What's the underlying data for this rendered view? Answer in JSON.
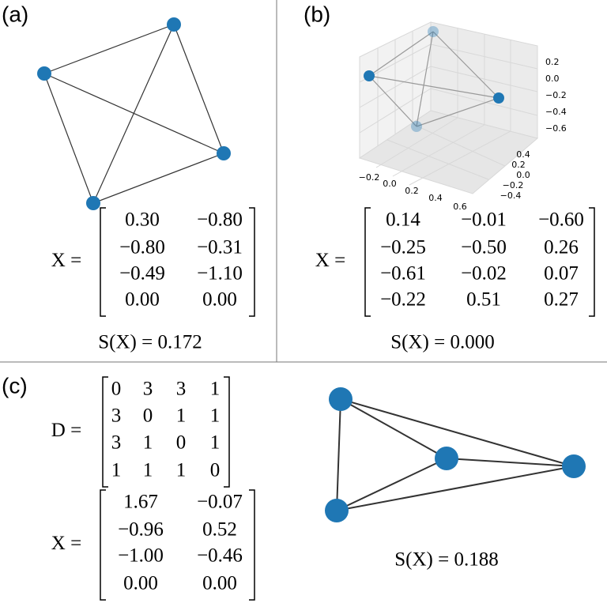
{
  "panels": [
    {
      "label": "(a)",
      "matrix": {
        "name": "X =",
        "rows": [
          [
            "0.30",
            "−0.80"
          ],
          [
            "−0.80",
            "−0.31"
          ],
          [
            "−0.49",
            "−1.10"
          ],
          [
            "0.00",
            "0.00"
          ]
        ]
      },
      "score": "S(X) = 0.172"
    },
    {
      "label": "(b)",
      "plot3d": {
        "x_ticks": [
          "−0.2",
          "0.0",
          "0.2",
          "0.4",
          "0.6"
        ],
        "y_ticks": [
          "0.4",
          "0.2",
          "0.0",
          "−0.2",
          "−0.4"
        ],
        "z_ticks": [
          "0.2",
          "0.0",
          "−0.2",
          "−0.4",
          "−0.6"
        ]
      },
      "matrix": {
        "name": "X =",
        "rows": [
          [
            "0.14",
            "−0.01",
            "−0.60"
          ],
          [
            "−0.25",
            "−0.50",
            "0.26"
          ],
          [
            "−0.61",
            "−0.02",
            "0.07"
          ],
          [
            "−0.22",
            "0.51",
            "0.27"
          ]
        ]
      },
      "score": "S(X) = 0.000"
    },
    {
      "label": "(c)",
      "distance_matrix": {
        "name": "D =",
        "rows": [
          [
            "0",
            "3",
            "3",
            "1"
          ],
          [
            "3",
            "0",
            "1",
            "1"
          ],
          [
            "3",
            "1",
            "0",
            "1"
          ],
          [
            "1",
            "1",
            "1",
            "0"
          ]
        ]
      },
      "matrix": {
        "name": "X =",
        "rows": [
          [
            "1.67",
            "−0.07"
          ],
          [
            "−0.96",
            "0.52"
          ],
          [
            "−1.00",
            "−0.46"
          ],
          [
            "0.00",
            "0.00"
          ]
        ]
      },
      "score": "S(X) = 0.188"
    }
  ]
}
